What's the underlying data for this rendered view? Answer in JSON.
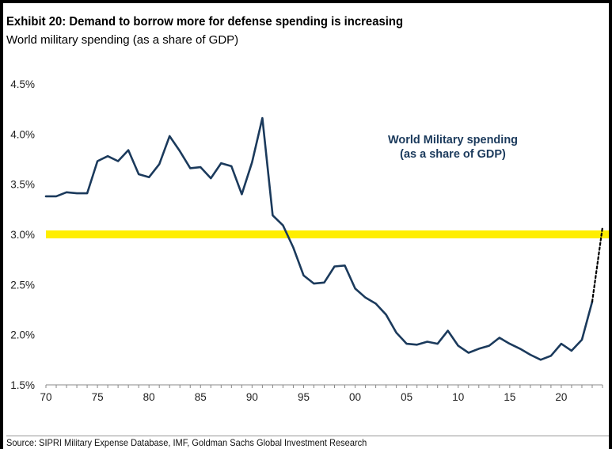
{
  "header": {
    "title": "Exhibit 20: Demand to borrow more for defense spending is increasing",
    "subtitle": "World military spending (as a share of GDP)"
  },
  "footer": {
    "source": "Source: SIPRI Military Expense Database, IMF, Goldman Sachs Global Investment Research"
  },
  "colors": {
    "line": "#1b3a5c",
    "highlight": "#ffee00",
    "annotation": "#1b3a5c",
    "axis": "#888888"
  },
  "chart_data": {
    "type": "line",
    "title": "World military spending (as a share of GDP)",
    "xlabel": "",
    "ylabel": "",
    "xlim": [
      1970,
      2024
    ],
    "ylim": [
      1.5,
      4.5
    ],
    "y_ticks": [
      1.5,
      2.0,
      2.5,
      3.0,
      3.5,
      4.0,
      4.5
    ],
    "y_tick_labels": [
      "1.5%",
      "2.0%",
      "2.5%",
      "3.0%",
      "3.5%",
      "4.0%",
      "4.5%"
    ],
    "x_ticks": [
      1970,
      1975,
      1980,
      1985,
      1990,
      1995,
      2000,
      2005,
      2010,
      2015,
      2020
    ],
    "x_tick_labels": [
      "70",
      "75",
      "80",
      "85",
      "90",
      "95",
      "00",
      "05",
      "10",
      "15",
      "20"
    ],
    "annotation": [
      "World Military spending",
      "(as a share of GDP)"
    ],
    "highlight_band": {
      "value": 3.0,
      "label": "3.0%"
    },
    "series": [
      {
        "name": "World Military spending",
        "style": "solid",
        "x": [
          1970,
          1971,
          1972,
          1973,
          1974,
          1975,
          1976,
          1977,
          1978,
          1979,
          1980,
          1981,
          1982,
          1983,
          1984,
          1985,
          1986,
          1987,
          1988,
          1989,
          1990,
          1991,
          1992,
          1993,
          1994,
          1995,
          1996,
          1997,
          1998,
          1999,
          2000,
          2001,
          2002,
          2003,
          2004,
          2005,
          2006,
          2007,
          2008,
          2009,
          2010,
          2011,
          2012,
          2013,
          2014,
          2015,
          2016,
          2017,
          2018,
          2019,
          2020,
          2021,
          2022,
          2023
        ],
        "values": [
          3.38,
          3.38,
          3.42,
          3.41,
          3.41,
          3.73,
          3.78,
          3.73,
          3.84,
          3.6,
          3.57,
          3.7,
          3.98,
          3.83,
          3.66,
          3.67,
          3.56,
          3.71,
          3.68,
          3.4,
          3.72,
          4.16,
          3.19,
          3.09,
          2.87,
          2.59,
          2.51,
          2.52,
          2.68,
          2.69,
          2.46,
          2.37,
          2.31,
          2.2,
          2.02,
          1.91,
          1.9,
          1.93,
          1.91,
          2.04,
          1.89,
          1.82,
          1.86,
          1.89,
          1.97,
          1.91,
          1.86,
          1.8,
          1.75,
          1.79,
          1.91,
          1.84,
          1.95,
          2.33
        ]
      },
      {
        "name": "Projection",
        "style": "dotted",
        "x": [
          2023,
          2024
        ],
        "values": [
          2.33,
          3.07
        ]
      }
    ]
  }
}
